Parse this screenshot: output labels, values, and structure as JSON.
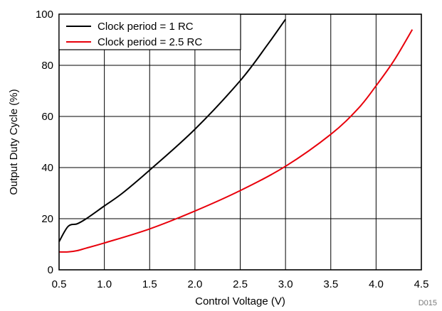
{
  "chart_data": {
    "type": "line",
    "title": "",
    "xlabel": "Control Voltage (V)",
    "ylabel": "Output Duty Cycle (%)",
    "xlim": [
      0.5,
      4.5
    ],
    "ylim": [
      0,
      100
    ],
    "xticks": [
      "0.5",
      "1.0",
      "1.5",
      "2.0",
      "2.5",
      "3.0",
      "3.5",
      "4.0",
      "4.5"
    ],
    "yticks": [
      "0",
      "20",
      "40",
      "60",
      "80",
      "100"
    ],
    "grid": true,
    "legend_position": "top-left",
    "series": [
      {
        "name": "Clock period = 1 RC",
        "color": "#000000",
        "x": [
          0.5,
          0.6,
          0.7,
          0.8,
          1.0,
          1.2,
          1.5,
          2.0,
          2.5,
          2.8,
          3.0
        ],
        "y": [
          11,
          17,
          18,
          20,
          25,
          30,
          39,
          55,
          74,
          88,
          98
        ]
      },
      {
        "name": "Clock period = 2.5 RC",
        "color": "#e8000b",
        "x": [
          0.5,
          0.6,
          0.7,
          0.8,
          1.0,
          1.5,
          2.0,
          2.5,
          3.0,
          3.5,
          3.8,
          4.0,
          4.2,
          4.4
        ],
        "y": [
          7,
          7,
          7.5,
          8.5,
          10.5,
          16,
          23,
          31,
          40.5,
          53,
          63,
          72,
          82,
          94
        ]
      }
    ],
    "figure_id": "D015"
  }
}
